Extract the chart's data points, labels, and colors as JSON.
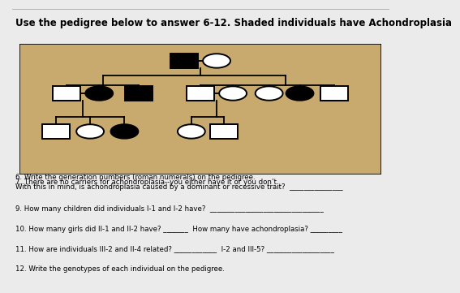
{
  "title": "Use the pedigree below to answer 6-12. Shaded individuals have Achondroplasia",
  "title_fontsize": 8.5,
  "bg_color": "#c8a96e",
  "white": "#ffffff",
  "black": "#000000",
  "line_color": "#000000",
  "separator_color": "#1a1a1a",
  "q_top": [
    "6. Write the generation numbers (roman numerals) on the pedigree.",
    "7. There are no carriers for achondroplasia--you either have it or you don’t.",
    "With this in mind, is achondroplasia caused by a dominant or recessive trait?  _______________"
  ],
  "q_bottom": [
    "9. How many children did individuals I-1 and I-2 have?  ________________________________",
    "10. How many girls did II-1 and II-2 have? _______  How many have achondroplasia? _________",
    "11. How are individuals III-2 and II-4 related? ____________  I-2 and III-5? ___________________",
    "12. Write the genotypes of each individual on the pedigree."
  ]
}
